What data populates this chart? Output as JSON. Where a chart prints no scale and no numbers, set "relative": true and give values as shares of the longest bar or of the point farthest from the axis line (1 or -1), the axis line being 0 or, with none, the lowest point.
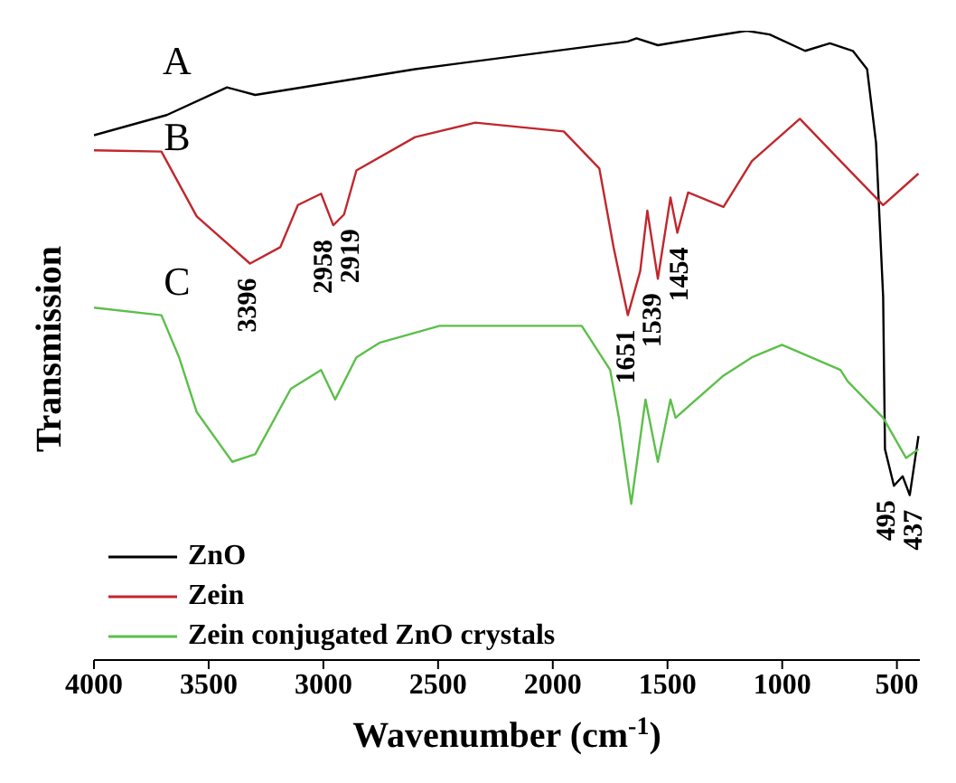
{
  "chart_data": {
    "type": "line",
    "relative": true,
    "xlabel": "Wavenumber (cm$^{-1}$)",
    "ylabel": "Transmission",
    "xlim": [
      4000,
      400
    ],
    "xticks": [
      4000,
      3500,
      3000,
      2500,
      2000,
      1500,
      1000,
      500
    ],
    "legend": "bottom left",
    "marker": "none",
    "line_style": "solid",
    "grid": false,
    "series": [
      {
        "name": "ZnO",
        "color": "#000000",
        "x": [
          4000,
          3683,
          3420,
          3297,
          2600,
          1673,
          1635,
          1542,
          1310,
          1155,
          1055,
          900,
          792,
          692,
          630,
          591,
          560,
          552,
          513,
          475,
          444,
          406
        ],
        "values": [
          0.834,
          0.866,
          0.91,
          0.898,
          0.939,
          0.983,
          0.988,
          0.977,
          0.991,
          1.0,
          0.994,
          0.968,
          0.98,
          0.968,
          0.939,
          0.822,
          0.577,
          0.335,
          0.277,
          0.292,
          0.262,
          0.356
        ]
      },
      {
        "name": "Zein",
        "color": "#c0272d",
        "x": [
          4000,
          3706,
          3552,
          3320,
          3188,
          3111,
          3010,
          2957,
          2910,
          2856,
          2600,
          2338,
          1952,
          1797,
          1735,
          1673,
          1619,
          1588,
          1542,
          1487,
          1457,
          1410,
          1256,
          1132,
          923,
          746,
          560,
          406
        ],
        "values": [
          0.81,
          0.808,
          0.705,
          0.63,
          0.656,
          0.723,
          0.741,
          0.691,
          0.708,
          0.778,
          0.831,
          0.854,
          0.84,
          0.781,
          0.656,
          0.548,
          0.618,
          0.714,
          0.606,
          0.735,
          0.679,
          0.743,
          0.72,
          0.793,
          0.86,
          0.793,
          0.723,
          0.773
        ]
      },
      {
        "name": "Zein conjugated ZnO crystals",
        "color": "#5cbf4a",
        "x": [
          4000,
          3706,
          3629,
          3552,
          3397,
          3297,
          3142,
          3010,
          2949,
          2856,
          2756,
          2493,
          1874,
          1750,
          1712,
          1658,
          1596,
          1542,
          1487,
          1465,
          1256,
          1132,
          1001,
          746,
          715,
          560,
          460,
          406
        ],
        "values": [
          0.56,
          0.548,
          0.481,
          0.394,
          0.315,
          0.327,
          0.431,
          0.461,
          0.414,
          0.481,
          0.504,
          0.531,
          0.531,
          0.461,
          0.385,
          0.248,
          0.414,
          0.315,
          0.414,
          0.385,
          0.452,
          0.481,
          0.501,
          0.461,
          0.443,
          0.385,
          0.321,
          0.335
        ]
      }
    ],
    "annotations": [
      "A",
      "B",
      "C",
      {
        "text": "3396",
        "x": 3320,
        "y": 0.63
      },
      {
        "text": "2958",
        "x": 2957,
        "y": 0.691
      },
      {
        "text": "2919",
        "x": 2910,
        "y": 0.708
      },
      {
        "text": "1651",
        "x": 1673,
        "y": 0.548
      },
      {
        "text": "1539",
        "x": 1542,
        "y": 0.606
      },
      {
        "text": "1454",
        "x": 1457,
        "y": 0.679
      },
      {
        "text": "495",
        "x": 513,
        "y": 0.277
      },
      {
        "text": "437",
        "x": 444,
        "y": 0.262
      }
    ]
  }
}
